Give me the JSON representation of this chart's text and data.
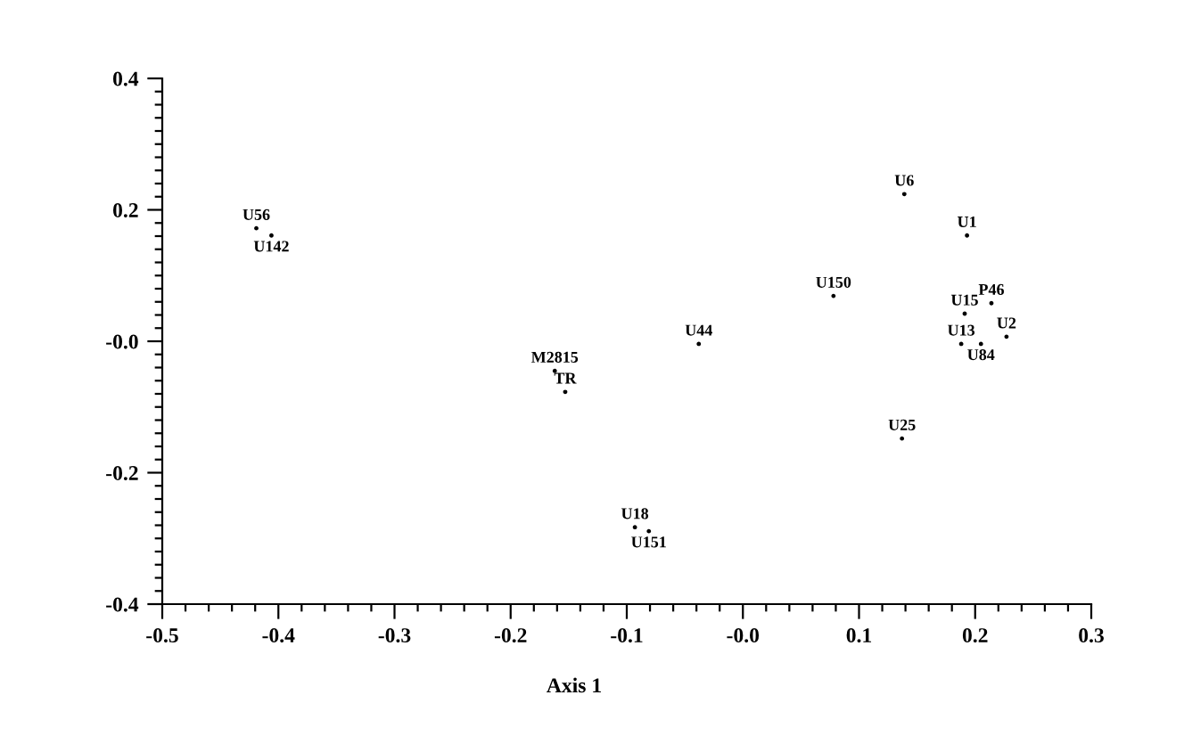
{
  "chart_data": {
    "type": "scatter",
    "xlabel": "Axis 1",
    "x": [
      -0.419,
      -0.406,
      0.139,
      0.193,
      0.078,
      0.214,
      0.191,
      0.227,
      0.188,
      0.205,
      -0.038,
      -0.162,
      -0.153,
      0.137,
      -0.093,
      -0.081
    ],
    "values": [
      0.172,
      0.161,
      0.224,
      0.161,
      0.069,
      0.058,
      0.042,
      0.007,
      -0.004,
      -0.004,
      -0.004,
      -0.045,
      -0.077,
      -0.148,
      -0.283,
      -0.289
    ],
    "value_labels": [
      "U56",
      "U142",
      "U6",
      "U1",
      "U150",
      "P46",
      "U15",
      "U2",
      "U13",
      "U84",
      "U44",
      "M2815",
      "TR",
      "U25",
      "U18",
      "U151"
    ],
    "marker": "circle",
    "grid": false,
    "xlim": [
      -0.5,
      0.3
    ],
    "ylim": [
      -0.4,
      0.4
    ],
    "xticks": [
      -0.5,
      -0.4,
      -0.3,
      -0.2,
      -0.1,
      {
        "value": 0,
        "label": "-0.0"
      },
      0.1,
      0.2,
      0.3
    ],
    "yticks": [
      -0.4,
      -0.2,
      {
        "value": 0,
        "label": "-0.0"
      },
      0.2,
      0.4
    ]
  }
}
